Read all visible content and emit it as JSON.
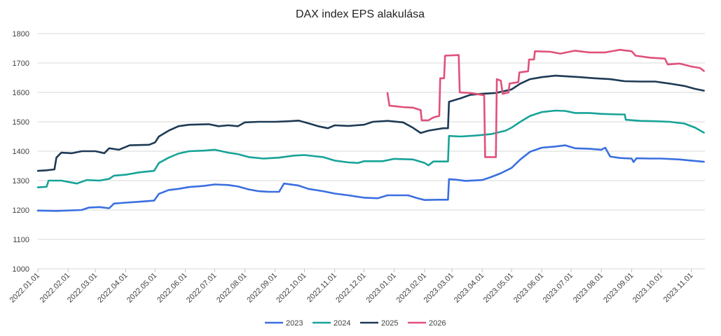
{
  "chart_data": {
    "type": "line",
    "title": "DAX index EPS alakulása",
    "xlabel": "",
    "ylabel": "",
    "ylim": [
      1000,
      1800
    ],
    "yticks": [
      1000,
      1100,
      1200,
      1300,
      1400,
      1500,
      1600,
      1700,
      1800
    ],
    "xlim": [
      "2022-01-01",
      "2023-11-15"
    ],
    "x_ticks": [
      {
        "date": "2022-01-01",
        "label": "2022.01.01"
      },
      {
        "date": "2022-02-01",
        "label": "2022.02.01"
      },
      {
        "date": "2022-03-01",
        "label": "2022.03.01"
      },
      {
        "date": "2022-04-01",
        "label": "2022.04.01"
      },
      {
        "date": "2022-05-01",
        "label": "2022.05.01"
      },
      {
        "date": "2022-06-01",
        "label": "2022.06.01"
      },
      {
        "date": "2022-07-01",
        "label": "2022.07.01"
      },
      {
        "date": "2022-08-01",
        "label": "2022.08.01"
      },
      {
        "date": "2022-09-01",
        "label": "2022.09.01"
      },
      {
        "date": "2022-10-01",
        "label": "2022.10.01"
      },
      {
        "date": "2022-11-01",
        "label": "2022.11.01"
      },
      {
        "date": "2022-12-01",
        "label": "2022.12.01"
      },
      {
        "date": "2023-01-01",
        "label": "2023.01.01"
      },
      {
        "date": "2023-02-01",
        "label": "2023.02.01"
      },
      {
        "date": "2023-03-01",
        "label": "2023.03.01"
      },
      {
        "date": "2023-04-01",
        "label": "2023.04.01"
      },
      {
        "date": "2023-05-01",
        "label": "2023.05.01"
      },
      {
        "date": "2023-06-01",
        "label": "2023.06.01"
      },
      {
        "date": "2023-07-01",
        "label": "2023.07.01"
      },
      {
        "date": "2023-08-01",
        "label": "2023.08.01"
      },
      {
        "date": "2023-09-01",
        "label": "2023.09.01"
      },
      {
        "date": "2023-10-01",
        "label": "2023.10.01"
      },
      {
        "date": "2023-11-01",
        "label": "2023.11.01"
      }
    ],
    "grid": "horizontal",
    "legend_position": "bottom",
    "series": [
      {
        "name": "2023",
        "color": "#3A6FE0",
        "points": [
          [
            "2022-01-01",
            1198
          ],
          [
            "2022-01-20",
            1197
          ],
          [
            "2022-02-15",
            1200
          ],
          [
            "2022-02-22",
            1208
          ],
          [
            "2022-03-05",
            1210
          ],
          [
            "2022-03-15",
            1206
          ],
          [
            "2022-03-20",
            1222
          ],
          [
            "2022-04-01",
            1225
          ],
          [
            "2022-04-15",
            1228
          ],
          [
            "2022-04-30",
            1232
          ],
          [
            "2022-05-05",
            1255
          ],
          [
            "2022-05-15",
            1268
          ],
          [
            "2022-05-25",
            1272
          ],
          [
            "2022-06-05",
            1278
          ],
          [
            "2022-06-20",
            1282
          ],
          [
            "2022-07-01",
            1287
          ],
          [
            "2022-07-15",
            1285
          ],
          [
            "2022-07-25",
            1280
          ],
          [
            "2022-08-05",
            1270
          ],
          [
            "2022-08-15",
            1264
          ],
          [
            "2022-08-25",
            1262
          ],
          [
            "2022-09-05",
            1262
          ],
          [
            "2022-09-10",
            1290
          ],
          [
            "2022-09-25",
            1283
          ],
          [
            "2022-10-05",
            1272
          ],
          [
            "2022-10-20",
            1264
          ],
          [
            "2022-11-01",
            1256
          ],
          [
            "2022-11-15",
            1250
          ],
          [
            "2022-12-01",
            1242
          ],
          [
            "2022-12-15",
            1240
          ],
          [
            "2022-12-25",
            1250
          ],
          [
            "2023-01-15",
            1250
          ],
          [
            "2023-01-25",
            1240
          ],
          [
            "2023-02-01",
            1234
          ],
          [
            "2023-02-15",
            1235
          ],
          [
            "2023-02-25",
            1235
          ],
          [
            "2023-02-26",
            1305
          ],
          [
            "2023-03-05",
            1303
          ],
          [
            "2023-03-15",
            1299
          ],
          [
            "2023-04-01",
            1302
          ],
          [
            "2023-04-10",
            1312
          ],
          [
            "2023-04-20",
            1325
          ],
          [
            "2023-05-01",
            1343
          ],
          [
            "2023-05-10",
            1372
          ],
          [
            "2023-05-20",
            1398
          ],
          [
            "2023-06-01",
            1412
          ],
          [
            "2023-06-15",
            1416
          ],
          [
            "2023-06-25",
            1420
          ],
          [
            "2023-07-05",
            1410
          ],
          [
            "2023-07-20",
            1408
          ],
          [
            "2023-08-01",
            1405
          ],
          [
            "2023-08-05",
            1412
          ],
          [
            "2023-08-10",
            1382
          ],
          [
            "2023-08-20",
            1377
          ],
          [
            "2023-09-01",
            1375
          ],
          [
            "2023-09-03",
            1363
          ],
          [
            "2023-09-06",
            1376
          ],
          [
            "2023-09-20",
            1375
          ],
          [
            "2023-10-01",
            1375
          ],
          [
            "2023-10-20",
            1372
          ],
          [
            "2023-11-01",
            1368
          ],
          [
            "2023-11-14",
            1364
          ]
        ]
      },
      {
        "name": "2024",
        "color": "#17A398",
        "points": [
          [
            "2022-01-01",
            1277
          ],
          [
            "2022-01-10",
            1279
          ],
          [
            "2022-01-12",
            1300
          ],
          [
            "2022-01-25",
            1300
          ],
          [
            "2022-02-10",
            1290
          ],
          [
            "2022-02-20",
            1302
          ],
          [
            "2022-03-05",
            1300
          ],
          [
            "2022-03-15",
            1306
          ],
          [
            "2022-03-20",
            1317
          ],
          [
            "2022-04-01",
            1320
          ],
          [
            "2022-04-15",
            1328
          ],
          [
            "2022-04-30",
            1333
          ],
          [
            "2022-05-05",
            1360
          ],
          [
            "2022-05-15",
            1378
          ],
          [
            "2022-05-25",
            1392
          ],
          [
            "2022-06-05",
            1400
          ],
          [
            "2022-06-20",
            1402
          ],
          [
            "2022-07-01",
            1405
          ],
          [
            "2022-07-15",
            1395
          ],
          [
            "2022-07-25",
            1390
          ],
          [
            "2022-08-05",
            1380
          ],
          [
            "2022-08-20",
            1375
          ],
          [
            "2022-09-05",
            1378
          ],
          [
            "2022-09-20",
            1385
          ],
          [
            "2022-10-01",
            1387
          ],
          [
            "2022-10-20",
            1380
          ],
          [
            "2022-11-01",
            1368
          ],
          [
            "2022-11-15",
            1362
          ],
          [
            "2022-11-25",
            1360
          ],
          [
            "2022-12-01",
            1366
          ],
          [
            "2022-12-20",
            1366
          ],
          [
            "2023-01-01",
            1374
          ],
          [
            "2023-01-20",
            1372
          ],
          [
            "2023-02-01",
            1360
          ],
          [
            "2023-02-05",
            1352
          ],
          [
            "2023-02-10",
            1365
          ],
          [
            "2023-02-25",
            1365
          ],
          [
            "2023-02-26",
            1452
          ],
          [
            "2023-03-10",
            1450
          ],
          [
            "2023-03-25",
            1453
          ],
          [
            "2023-04-10",
            1458
          ],
          [
            "2023-04-25",
            1470
          ],
          [
            "2023-05-01",
            1480
          ],
          [
            "2023-05-10",
            1500
          ],
          [
            "2023-05-20",
            1520
          ],
          [
            "2023-06-01",
            1533
          ],
          [
            "2023-06-15",
            1538
          ],
          [
            "2023-06-25",
            1537
          ],
          [
            "2023-07-05",
            1530
          ],
          [
            "2023-07-20",
            1530
          ],
          [
            "2023-08-01",
            1527
          ],
          [
            "2023-08-20",
            1525
          ],
          [
            "2023-08-25",
            1525
          ],
          [
            "2023-08-26",
            1507
          ],
          [
            "2023-09-10",
            1503
          ],
          [
            "2023-09-25",
            1502
          ],
          [
            "2023-10-10",
            1500
          ],
          [
            "2023-10-25",
            1494
          ],
          [
            "2023-11-05",
            1480
          ],
          [
            "2023-11-14",
            1463
          ]
        ]
      },
      {
        "name": "2025",
        "color": "#1E3A55",
        "points": [
          [
            "2022-01-01",
            1333
          ],
          [
            "2022-01-10",
            1335
          ],
          [
            "2022-01-18",
            1338
          ],
          [
            "2022-01-20",
            1378
          ],
          [
            "2022-01-25",
            1395
          ],
          [
            "2022-02-05",
            1393
          ],
          [
            "2022-02-15",
            1400
          ],
          [
            "2022-03-01",
            1400
          ],
          [
            "2022-03-10",
            1393
          ],
          [
            "2022-03-15",
            1410
          ],
          [
            "2022-03-25",
            1405
          ],
          [
            "2022-04-05",
            1420
          ],
          [
            "2022-04-25",
            1422
          ],
          [
            "2022-05-01",
            1430
          ],
          [
            "2022-05-05",
            1450
          ],
          [
            "2022-05-15",
            1470
          ],
          [
            "2022-05-25",
            1485
          ],
          [
            "2022-06-05",
            1490
          ],
          [
            "2022-06-25",
            1492
          ],
          [
            "2022-07-05",
            1485
          ],
          [
            "2022-07-15",
            1488
          ],
          [
            "2022-07-25",
            1485
          ],
          [
            "2022-08-01",
            1498
          ],
          [
            "2022-08-15",
            1500
          ],
          [
            "2022-09-01",
            1500
          ],
          [
            "2022-09-15",
            1502
          ],
          [
            "2022-09-25",
            1504
          ],
          [
            "2022-10-05",
            1495
          ],
          [
            "2022-10-15",
            1485
          ],
          [
            "2022-10-25",
            1478
          ],
          [
            "2022-11-01",
            1488
          ],
          [
            "2022-11-15",
            1486
          ],
          [
            "2022-12-01",
            1490
          ],
          [
            "2022-12-10",
            1500
          ],
          [
            "2022-12-25",
            1503
          ],
          [
            "2023-01-10",
            1498
          ],
          [
            "2023-01-20",
            1480
          ],
          [
            "2023-01-28",
            1462
          ],
          [
            "2023-02-05",
            1470
          ],
          [
            "2023-02-20",
            1478
          ],
          [
            "2023-02-25",
            1478
          ],
          [
            "2023-02-26",
            1568
          ],
          [
            "2023-03-10",
            1580
          ],
          [
            "2023-03-20",
            1592
          ],
          [
            "2023-04-01",
            1595
          ],
          [
            "2023-04-15",
            1598
          ],
          [
            "2023-05-01",
            1610
          ],
          [
            "2023-05-10",
            1630
          ],
          [
            "2023-05-20",
            1645
          ],
          [
            "2023-06-01",
            1652
          ],
          [
            "2023-06-15",
            1657
          ],
          [
            "2023-06-25",
            1655
          ],
          [
            "2023-07-10",
            1652
          ],
          [
            "2023-07-25",
            1648
          ],
          [
            "2023-08-10",
            1645
          ],
          [
            "2023-08-25",
            1638
          ],
          [
            "2023-09-10",
            1637
          ],
          [
            "2023-09-25",
            1637
          ],
          [
            "2023-10-10",
            1630
          ],
          [
            "2023-10-25",
            1622
          ],
          [
            "2023-11-05",
            1612
          ],
          [
            "2023-11-14",
            1606
          ]
        ]
      },
      {
        "name": "2026",
        "color": "#E0507A",
        "points": [
          [
            "2022-12-25",
            1598
          ],
          [
            "2022-12-27",
            1555
          ],
          [
            "2023-01-10",
            1550
          ],
          [
            "2023-01-20",
            1548
          ],
          [
            "2023-01-28",
            1540
          ],
          [
            "2023-01-29",
            1505
          ],
          [
            "2023-02-05",
            1505
          ],
          [
            "2023-02-10",
            1515
          ],
          [
            "2023-02-16",
            1520
          ],
          [
            "2023-02-17",
            1648
          ],
          [
            "2023-02-21",
            1648
          ],
          [
            "2023-02-22",
            1725
          ],
          [
            "2023-03-08",
            1727
          ],
          [
            "2023-03-09",
            1600
          ],
          [
            "2023-03-20",
            1598
          ],
          [
            "2023-04-03",
            1590
          ],
          [
            "2023-04-04",
            1380
          ],
          [
            "2023-04-15",
            1380
          ],
          [
            "2023-04-16",
            1645
          ],
          [
            "2023-04-20",
            1640
          ],
          [
            "2023-04-22",
            1595
          ],
          [
            "2023-04-28",
            1600
          ],
          [
            "2023-04-29",
            1630
          ],
          [
            "2023-05-08",
            1635
          ],
          [
            "2023-05-09",
            1668
          ],
          [
            "2023-05-18",
            1672
          ],
          [
            "2023-05-19",
            1712
          ],
          [
            "2023-05-24",
            1712
          ],
          [
            "2023-05-25",
            1740
          ],
          [
            "2023-06-10",
            1738
          ],
          [
            "2023-06-20",
            1732
          ],
          [
            "2023-07-05",
            1742
          ],
          [
            "2023-07-20",
            1736
          ],
          [
            "2023-08-05",
            1736
          ],
          [
            "2023-08-20",
            1745
          ],
          [
            "2023-09-01",
            1740
          ],
          [
            "2023-09-05",
            1725
          ],
          [
            "2023-09-20",
            1718
          ],
          [
            "2023-10-05",
            1715
          ],
          [
            "2023-10-08",
            1695
          ],
          [
            "2023-10-20",
            1698
          ],
          [
            "2023-11-01",
            1688
          ],
          [
            "2023-11-10",
            1683
          ],
          [
            "2023-11-14",
            1673
          ]
        ]
      }
    ]
  }
}
